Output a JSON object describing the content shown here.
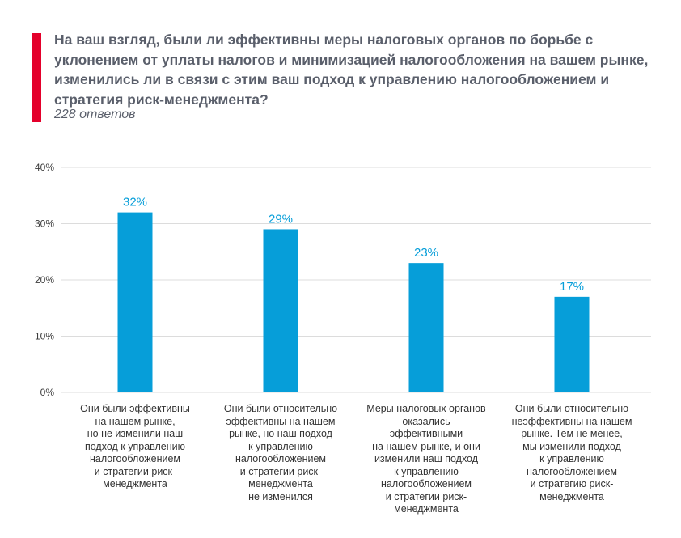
{
  "header": {
    "title": "На ваш взгляд, были ли эффективны меры налоговых органов по борьбе с уклонением от уплаты налогов и минимизацией налогообложения на вашем рынке, изменились ли в связи с этим ваш подход к управлению налогообложением и стратегия риск-менеджмента?",
    "subtitle": "228 ответов"
  },
  "colors": {
    "accent": "#e4002b",
    "bar": "#069ed9",
    "value_label": "#069ed9",
    "grid": "#dcdcdc",
    "title": "#5a5f6b"
  },
  "chart_data": {
    "type": "bar",
    "title": "",
    "xlabel": "",
    "ylabel": "",
    "ylim": [
      0,
      40
    ],
    "yticks": [
      0,
      10,
      20,
      30,
      40
    ],
    "ytick_labels": [
      "0%",
      "10%",
      "20%",
      "30%",
      "40%"
    ],
    "grid": true,
    "categories": [
      "Они были эффективны\nна нашем рынке,\nно не изменили наш\nподход к управлению\nналогообложением\nи стратегии риск-\nменеджмента",
      "Они были относительно\nэффективны на нашем\nрынке, но наш подход\nк управлению\nналогообложением\nи стратегии риск-\nменеджмента\nне изменился",
      "Меры налоговых органов\nоказались эффективными\nна нашем рынке, и они\nизменили наш подход\nк управлению\nналогообложением\nи стратегии риск-\nменеджмента",
      "Они были относительно\nнеэффективны на нашем\nрынке. Тем не менее,\nмы изменили подход\nк управлению\nналогообложением\nи стратегию риск-\nменеджмента"
    ],
    "values": [
      32,
      29,
      23,
      17
    ],
    "value_labels": [
      "32%",
      "29%",
      "23%",
      "17%"
    ]
  }
}
